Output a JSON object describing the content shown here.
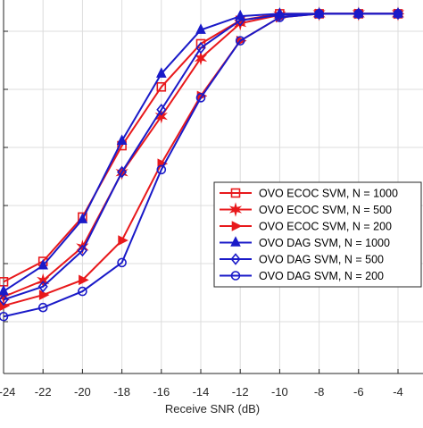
{
  "chart_data": {
    "type": "line",
    "title": "",
    "xlabel": "Receive SNR (dB)",
    "ylabel": "",
    "xlim": [
      -24,
      -3
    ],
    "ylim": [
      0.4,
      1.02
    ],
    "grid": true,
    "legend_position": "right",
    "x": [
      -24,
      -22,
      -20,
      -18,
      -16,
      -14,
      -12,
      -10,
      -8,
      -6,
      -4
    ],
    "x_tick_labels": [
      "-24",
      "-22",
      "-20",
      "-18",
      "-16",
      "-14",
      "-12",
      "-10",
      "-8",
      "-6",
      "-4"
    ],
    "series": [
      {
        "name": "OVO ECOC SVM, N = 1000",
        "color": "#e8191c",
        "marker": "square",
        "values": [
          0.553,
          0.587,
          0.661,
          0.78,
          0.878,
          0.95,
          0.989,
          1.0,
          1.0,
          1.0,
          1.0
        ]
      },
      {
        "name": "OVO ECOC SVM, N = 500",
        "color": "#e8191c",
        "marker": "star",
        "values": [
          0.528,
          0.555,
          0.611,
          0.735,
          0.829,
          0.926,
          0.984,
          0.998,
          1.0,
          1.0,
          1.0
        ]
      },
      {
        "name": "OVO ECOC SVM, N = 200",
        "color": "#e8191c",
        "marker": "triangle-right",
        "values": [
          0.513,
          0.531,
          0.556,
          0.622,
          0.75,
          0.863,
          0.955,
          0.994,
          1.0,
          1.0,
          1.0
        ]
      },
      {
        "name": "OVO DAG SVM, N = 1000",
        "color": "#1a1ac8",
        "marker": "triangle-up",
        "values": [
          0.537,
          0.58,
          0.657,
          0.788,
          0.9,
          0.973,
          0.996,
          1.0,
          1.0,
          1.0,
          1.0
        ]
      },
      {
        "name": "OVO DAG SVM, N = 500",
        "color": "#1a1ac8",
        "marker": "diamond",
        "values": [
          0.523,
          0.545,
          0.605,
          0.736,
          0.84,
          0.943,
          0.989,
          0.998,
          1.0,
          1.0,
          1.0
        ]
      },
      {
        "name": "OVO DAG SVM, N = 200",
        "color": "#1a1ac8",
        "marker": "circle",
        "values": [
          0.495,
          0.51,
          0.537,
          0.585,
          0.74,
          0.86,
          0.955,
          0.994,
          1.0,
          1.0,
          1.0
        ]
      }
    ]
  }
}
